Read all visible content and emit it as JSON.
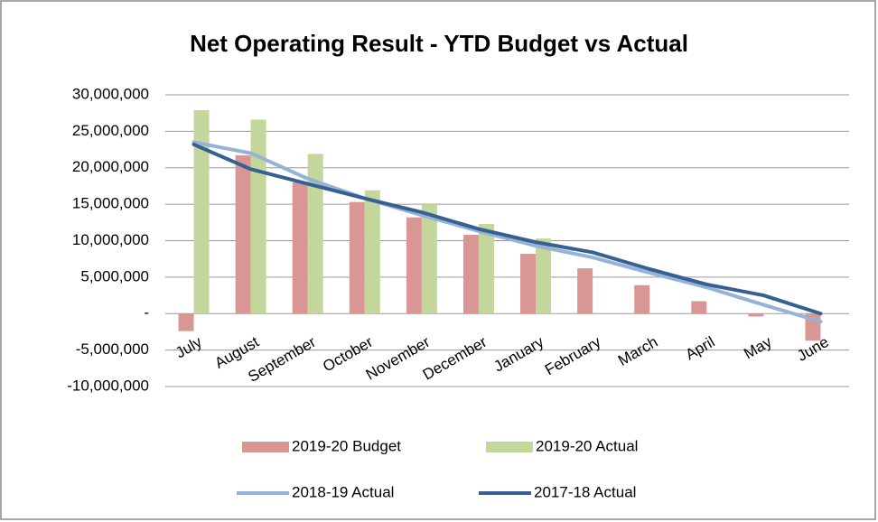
{
  "chart_data": {
    "type": "bar-line",
    "title": "Net Operating Result - YTD Budget vs Actual",
    "categories": [
      "July",
      "August",
      "September",
      "October",
      "November",
      "December",
      "January",
      "February",
      "March",
      "April",
      "May",
      "June"
    ],
    "series": [
      {
        "name": "2019-20 Budget",
        "type": "bar",
        "color": "#d99694",
        "values": [
          -2400000,
          21700000,
          18000000,
          15300000,
          13200000,
          10800000,
          8200000,
          6200000,
          3900000,
          1700000,
          -400000,
          -3700000
        ]
      },
      {
        "name": "2019-20 Actual",
        "type": "bar",
        "color": "#c3d69b",
        "values": [
          27900000,
          26600000,
          21900000,
          16900000,
          15000000,
          12300000,
          10300000,
          null,
          null,
          null,
          null,
          null
        ]
      },
      {
        "name": "2018-19 Actual",
        "type": "line",
        "color": "#95b3d7",
        "values": [
          23500000,
          22000000,
          18500000,
          15800000,
          13500000,
          11300000,
          9300000,
          7700000,
          5600000,
          3600000,
          1200000,
          -1100000
        ]
      },
      {
        "name": "2017-18 Actual",
        "type": "line",
        "color": "#376092",
        "values": [
          23200000,
          19800000,
          17800000,
          15800000,
          13900000,
          11600000,
          9800000,
          8400000,
          6100000,
          4000000,
          2500000,
          0
        ]
      }
    ],
    "ylim": [
      -10000000,
      30000000
    ],
    "yticks": [
      {
        "value": -10000000,
        "label": "-10,000,000"
      },
      {
        "value": -5000000,
        "label": "-5,000,000"
      },
      {
        "value": 0,
        "label": "-"
      },
      {
        "value": 5000000,
        "label": "5,000,000"
      },
      {
        "value": 10000000,
        "label": "10,000,000"
      },
      {
        "value": 15000000,
        "label": "15,000,000"
      },
      {
        "value": 20000000,
        "label": "20,000,000"
      },
      {
        "value": 25000000,
        "label": "25,000,000"
      },
      {
        "value": 30000000,
        "label": "30,000,000"
      }
    ],
    "grid": true,
    "legend": "bottom"
  }
}
